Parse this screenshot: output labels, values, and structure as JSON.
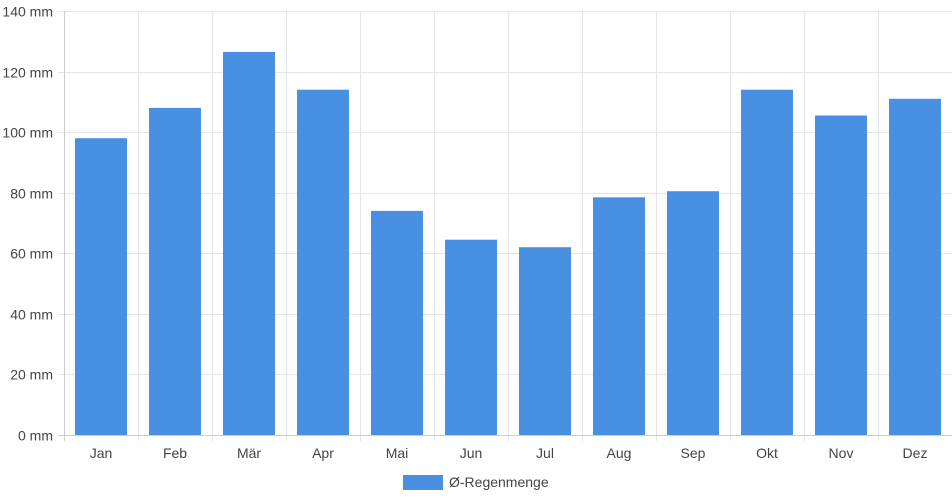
{
  "chart_data": {
    "type": "bar",
    "categories": [
      "Jan",
      "Feb",
      "Mär",
      "Apr",
      "Mai",
      "Jun",
      "Jul",
      "Aug",
      "Sep",
      "Okt",
      "Nov",
      "Dez"
    ],
    "series": [
      {
        "name": "Ø-Regenmenge",
        "values": [
          98,
          108,
          126.5,
          114,
          74,
          64.5,
          62,
          78.5,
          80.5,
          114,
          105.5,
          111
        ],
        "color": "#4a90e2"
      }
    ],
    "ylim": [
      0,
      140
    ],
    "y_ticks": [
      0,
      20,
      40,
      60,
      80,
      100,
      120,
      140
    ],
    "y_unit": "mm",
    "grid": true,
    "legend_position": "bottom-center"
  }
}
